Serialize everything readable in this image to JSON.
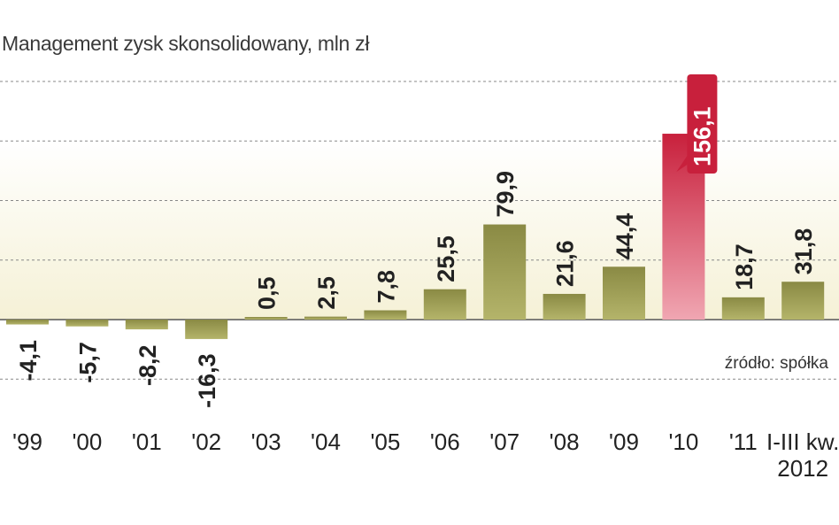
{
  "chart_data": {
    "type": "bar",
    "title": "Management zysk skonsolidowany, mln zł",
    "source": "źródło: spółka",
    "categories": [
      "'99",
      "'00",
      "'01",
      "'02",
      "'03",
      "'04",
      "'05",
      "'06",
      "'07",
      "'08",
      "'09",
      "'10",
      "'11",
      "I-III kw.\n2012"
    ],
    "values": [
      -4.1,
      -5.7,
      -8.2,
      -16.3,
      0.5,
      2.5,
      7.8,
      25.5,
      79.9,
      21.6,
      44.4,
      156.1,
      18.7,
      31.8
    ],
    "value_labels": [
      "-4,1",
      "-5,7",
      "-8,2",
      "-16,3",
      "0,5",
      "2,5",
      "7,8",
      "25,5",
      "79,9",
      "21,6",
      "44,4",
      "156,1",
      "18,7",
      "31,8"
    ],
    "highlight_index": 11,
    "ylim": [
      -50,
      200
    ],
    "grid": true,
    "colors": {
      "bar": "#8a8a44",
      "bar_light": "#b4b46a",
      "highlight": "#c8203c",
      "highlight_light": "#f0a6b2",
      "band": "#f7f4dc",
      "grid": "#888888",
      "baseline": "#555555"
    }
  }
}
